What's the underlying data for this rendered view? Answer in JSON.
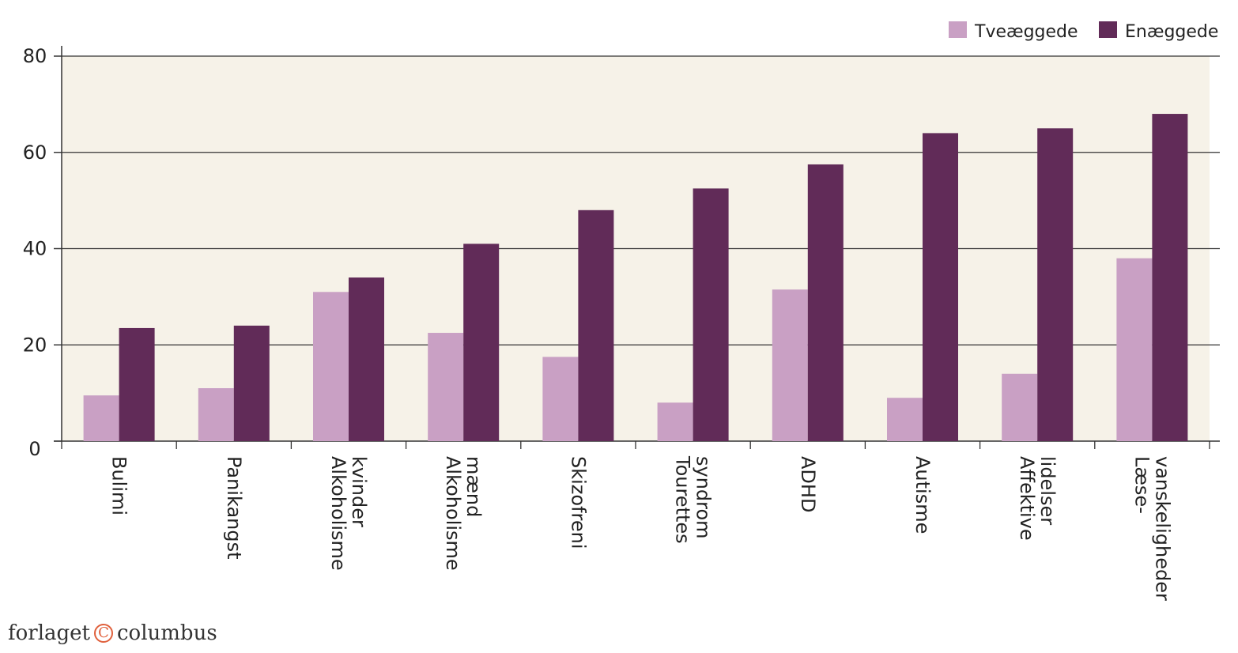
{
  "brand": {
    "left": "forlaget",
    "mark": "C",
    "right": "columbus"
  },
  "colors": {
    "plot_bg": "#f6f2e8",
    "tvaeggede": "#c9a0c4",
    "enaeggede": "#612b58",
    "axis": "#333333"
  },
  "chart_data": {
    "type": "bar",
    "categories": [
      [
        "Bulimi"
      ],
      [
        "Panikangst"
      ],
      [
        "Alkoholisme",
        "kvinder"
      ],
      [
        "Alkoholisme",
        "mænd"
      ],
      [
        "Skizofreni"
      ],
      [
        "Tourettes",
        "syndrom"
      ],
      [
        "ADHD"
      ],
      [
        "Autisme"
      ],
      [
        "Affektive",
        "lidelser"
      ],
      [
        "Læse-",
        "vanskeligheder"
      ]
    ],
    "series": [
      {
        "name": "Tveæggede",
        "values": [
          9.5,
          11,
          31,
          22.5,
          17.5,
          8,
          31.5,
          9,
          14,
          38
        ]
      },
      {
        "name": "Enæggede",
        "values": [
          23.5,
          24,
          34,
          41,
          48,
          52.5,
          57.5,
          64,
          65,
          68
        ]
      }
    ],
    "ylim": [
      0,
      80
    ],
    "yticks": [
      "0",
      "20",
      "40",
      "60",
      "80"
    ],
    "legend_position": "top-right",
    "grid": true
  }
}
